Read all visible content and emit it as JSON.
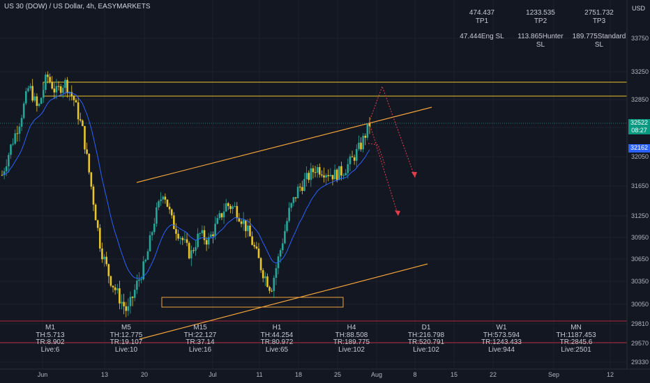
{
  "header": {
    "title": "US 30 (DOW) / US Dollar, 4h, EASYMARKETS",
    "currency": "USD"
  },
  "targets": [
    {
      "value": "474.437",
      "label": "TP1"
    },
    {
      "value": "1233.535",
      "label": "TP2"
    },
    {
      "value": "2751.732",
      "label": "TP3"
    }
  ],
  "stops": [
    {
      "value": "47.444",
      "label": "Eng SL"
    },
    {
      "value": "113.865",
      "label": "Hunter SL"
    },
    {
      "value": "189.775",
      "label": "Standard SL"
    }
  ],
  "timeframes": [
    {
      "name": "M1",
      "th": "TH:5.713",
      "tr": "TR:8.902",
      "live": "Live:6"
    },
    {
      "name": "M5",
      "th": "TH:12.775",
      "tr": "TR:19.107",
      "live": "Live:10"
    },
    {
      "name": "M15",
      "th": "TH:22.127",
      "tr": "TR:37.14",
      "live": "Live:16"
    },
    {
      "name": "H1",
      "th": "TH:44.254",
      "tr": "TR:80.972",
      "live": "Live:65"
    },
    {
      "name": "H4",
      "th": "TH:88.508",
      "tr": "TR:189.775",
      "live": "Live:102"
    },
    {
      "name": "D1",
      "th": "TH:216.798",
      "tr": "TR:520.791",
      "live": "Live:102"
    },
    {
      "name": "W1",
      "th": "TH:573.594",
      "tr": "TR:1243.433",
      "live": "Live:944"
    },
    {
      "name": "MN",
      "th": "TH:1187.453",
      "tr": "TR:2845.6",
      "live": "Live:2501"
    }
  ],
  "price_badges": {
    "last": "32522",
    "countdown": "08:27",
    "ma": "32162",
    "last_color": "#089981",
    "ma_color": "#2962ff"
  },
  "chart_data": {
    "type": "candlestick",
    "symbol": "US 30 (DOW) / US Dollar",
    "interval": "4h",
    "y_ticks": [
      33750,
      33250,
      32850,
      32450,
      32050,
      31650,
      31250,
      30950,
      30650,
      30350,
      30050,
      29810,
      29570,
      29330
    ],
    "x_ticks": [
      "Jun",
      "13",
      "20",
      "Jul",
      "11",
      "18",
      "25",
      "Aug",
      "8",
      "15",
      "22",
      "Sep",
      "12"
    ],
    "close_path": [
      [
        "2022-06-01",
        31800
      ],
      [
        "2022-06-02",
        32200
      ],
      [
        "2022-06-03",
        32550
      ],
      [
        "2022-06-06",
        33050
      ],
      [
        "2022-06-07",
        32700
      ],
      [
        "2022-06-08",
        33200
      ],
      [
        "2022-06-09",
        32950
      ],
      [
        "2022-06-10",
        33100
      ],
      [
        "2022-06-13",
        32850
      ],
      [
        "2022-06-14",
        32400
      ],
      [
        "2022-06-15",
        31600
      ],
      [
        "2022-06-16",
        30800
      ],
      [
        "2022-06-17",
        30400
      ],
      [
        "2022-06-20",
        30150
      ],
      [
        "2022-06-21",
        29950
      ],
      [
        "2022-06-22",
        30300
      ],
      [
        "2022-06-23",
        30600
      ],
      [
        "2022-06-24",
        31200
      ],
      [
        "2022-06-27",
        31600
      ],
      [
        "2022-06-28",
        31150
      ],
      [
        "2022-06-29",
        30950
      ],
      [
        "2022-06-30",
        30700
      ],
      [
        "2022-07-01",
        31000
      ],
      [
        "2022-07-05",
        30900
      ],
      [
        "2022-07-06",
        31150
      ],
      [
        "2022-07-07",
        31400
      ],
      [
        "2022-07-08",
        31350
      ],
      [
        "2022-07-11",
        31150
      ],
      [
        "2022-07-12",
        30850
      ],
      [
        "2022-07-13",
        30500
      ],
      [
        "2022-07-14",
        30250
      ],
      [
        "2022-07-15",
        30750
      ],
      [
        "2022-07-18",
        31300
      ],
      [
        "2022-07-19",
        31600
      ],
      [
        "2022-07-20",
        31750
      ],
      [
        "2022-07-21",
        31900
      ],
      [
        "2022-07-22",
        31850
      ],
      [
        "2022-07-25",
        31800
      ],
      [
        "2022-07-26",
        31850
      ],
      [
        "2022-07-27",
        32000
      ],
      [
        "2022-07-28",
        32200
      ],
      [
        "2022-07-29",
        32500
      ]
    ],
    "annotations": {
      "resistance_zone": [
        32850,
        33100
      ],
      "demand_zone": [
        30050,
        30200
      ],
      "horizontal_lines": [
        29810,
        29570
      ],
      "channel": "ascending",
      "projection": "dotted arrows down"
    }
  }
}
